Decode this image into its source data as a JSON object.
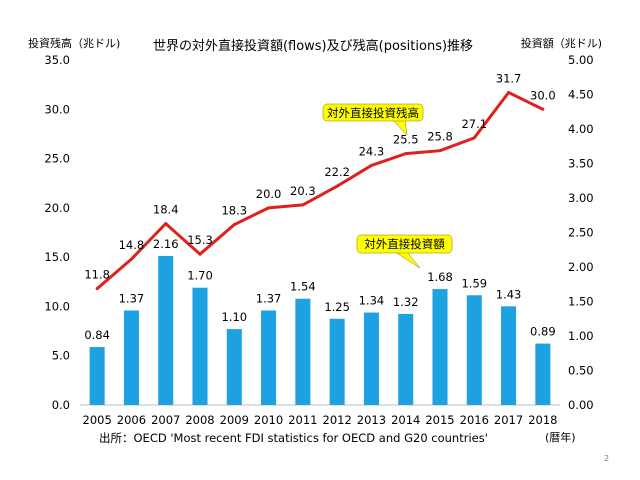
{
  "chart_data": {
    "type": "bar+line",
    "title": "世界の対外直接投資額(flows)及び残高(positions)推移",
    "categories": [
      "2005",
      "2006",
      "2007",
      "2008",
      "2009",
      "2010",
      "2011",
      "2012",
      "2013",
      "2014",
      "2015",
      "2016",
      "2017",
      "2018"
    ],
    "series": [
      {
        "name": "対外直接投資額",
        "type": "bar",
        "axis": "right",
        "color": "#1da1e2",
        "values": [
          0.84,
          1.37,
          2.16,
          1.7,
          1.1,
          1.37,
          1.54,
          1.25,
          1.34,
          1.32,
          1.68,
          1.59,
          1.43,
          0.89
        ],
        "labels": [
          "0.84",
          "1.37",
          "2.16",
          "1.70",
          "1.10",
          "1.37",
          "1.54",
          "1.25",
          "1.34",
          "1.32",
          "1.68",
          "1.59",
          "1.43",
          "0.89"
        ]
      },
      {
        "name": "対外直接投資残高",
        "type": "line",
        "axis": "left",
        "color": "#e0201c",
        "values": [
          11.8,
          14.8,
          18.4,
          15.3,
          18.3,
          20.0,
          20.3,
          22.2,
          24.3,
          25.5,
          25.8,
          27.1,
          31.7,
          30.0
        ],
        "labels": [
          "11.8",
          "14.8",
          "18.4",
          "15.3",
          "18.3",
          "20.0",
          "20.3",
          "22.2",
          "24.3",
          "25.5",
          "25.8",
          "27.1",
          "31.7",
          "30.0"
        ]
      }
    ],
    "left_axis": {
      "label": "投資残高（兆ドル)",
      "range": [
        0,
        35
      ],
      "ticks": [
        0,
        5,
        10,
        15,
        20,
        25,
        30,
        35
      ],
      "tick_labels": [
        "0.0",
        "5.0",
        "10.0",
        "15.0",
        "20.0",
        "25.0",
        "30.0",
        "35.0"
      ]
    },
    "right_axis": {
      "label": "投資額（兆ドル)",
      "range": [
        0,
        5
      ],
      "ticks": [
        0,
        0.5,
        1,
        1.5,
        2,
        2.5,
        3,
        3.5,
        4,
        4.5,
        5
      ],
      "tick_labels": [
        "0.00",
        "0.50",
        "1.00",
        "1.50",
        "2.00",
        "2.50",
        "3.00",
        "3.50",
        "4.00",
        "4.50",
        "5.00"
      ]
    },
    "xlabel": "(暦年)",
    "source": "出所：OECD 'Most recent FDI statistics for OECD and G20 countries'",
    "annotations": [
      {
        "text": "対外直接投資残高",
        "series": "対外直接投資残高",
        "bg": "#ffff00"
      },
      {
        "text": "対外直接投資額",
        "series": "対外直接投資額",
        "bg": "#ffff00"
      }
    ],
    "grid": false
  },
  "page_number": "2"
}
